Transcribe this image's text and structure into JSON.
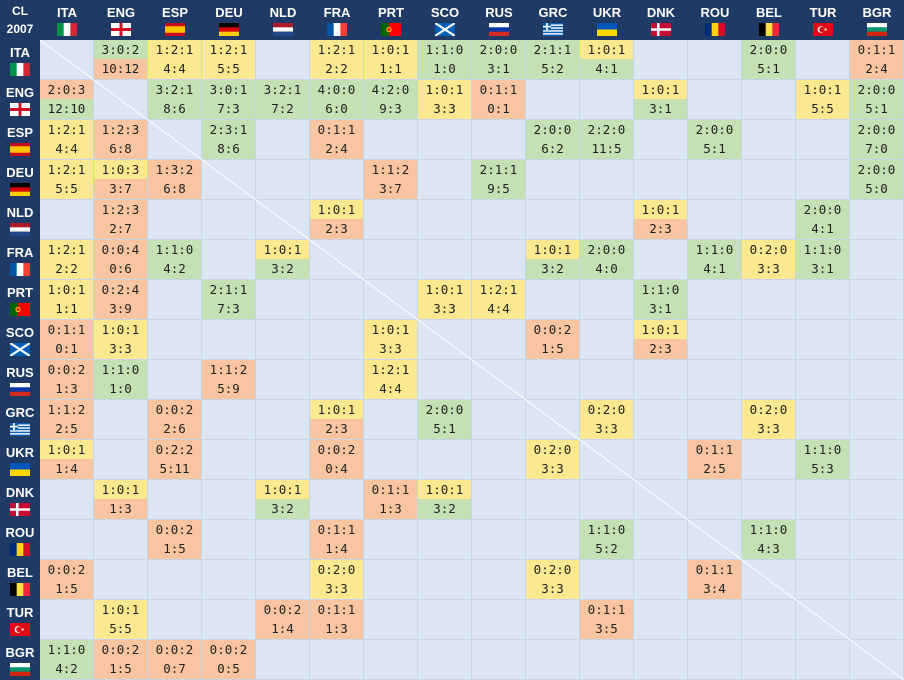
{
  "corner": {
    "line1": "CL",
    "line2": "2007"
  },
  "teams": [
    {
      "code": "ITA",
      "flag": "it-flag-icon"
    },
    {
      "code": "ENG",
      "flag": "eng-flag-icon"
    },
    {
      "code": "ESP",
      "flag": "es-flag-icon"
    },
    {
      "code": "DEU",
      "flag": "de-flag-icon"
    },
    {
      "code": "NLD",
      "flag": "nl-flag-icon"
    },
    {
      "code": "FRA",
      "flag": "fr-flag-icon"
    },
    {
      "code": "PRT",
      "flag": "pt-flag-icon"
    },
    {
      "code": "SCO",
      "flag": "sco-flag-icon"
    },
    {
      "code": "RUS",
      "flag": "ru-flag-icon"
    },
    {
      "code": "GRC",
      "flag": "gr-flag-icon"
    },
    {
      "code": "UKR",
      "flag": "ua-flag-icon"
    },
    {
      "code": "DNK",
      "flag": "dk-flag-icon"
    },
    {
      "code": "ROU",
      "flag": "ro-flag-icon"
    },
    {
      "code": "BEL",
      "flag": "be-flag-icon"
    },
    {
      "code": "TUR",
      "flag": "tr-flag-icon"
    },
    {
      "code": "BGR",
      "flag": "bg-flag-icon"
    }
  ],
  "colors": {
    "header_bg": "#1f3a64",
    "grid_bg": "#dce6f2",
    "green": "#c5e0b3",
    "yellow": "#fce98f",
    "orange": "#f8c5a0"
  },
  "chart_data": {
    "type": "table",
    "cells": [
      {
        "r": 0,
        "c": 1,
        "top": "3:0:2",
        "bot": "10:12",
        "style": "mixGO"
      },
      {
        "r": 0,
        "c": 2,
        "top": "1:2:1",
        "bot": "4:4",
        "style": "yellow"
      },
      {
        "r": 0,
        "c": 3,
        "top": "1:2:1",
        "bot": "5:5",
        "style": "yellow"
      },
      {
        "r": 0,
        "c": 5,
        "top": "1:2:1",
        "bot": "2:2",
        "style": "yellow"
      },
      {
        "r": 0,
        "c": 6,
        "top": "1:0:1",
        "bot": "1:1",
        "style": "yellow"
      },
      {
        "r": 0,
        "c": 7,
        "top": "1:1:0",
        "bot": "1:0",
        "style": "green"
      },
      {
        "r": 0,
        "c": 8,
        "top": "2:0:0",
        "bot": "3:1",
        "style": "green"
      },
      {
        "r": 0,
        "c": 9,
        "top": "2:1:1",
        "bot": "5:2",
        "style": "green"
      },
      {
        "r": 0,
        "c": 10,
        "top": "1:0:1",
        "bot": "4:1",
        "style": "mixYG"
      },
      {
        "r": 0,
        "c": 13,
        "top": "2:0:0",
        "bot": "5:1",
        "style": "green"
      },
      {
        "r": 0,
        "c": 15,
        "top": "0:1:1",
        "bot": "2:4",
        "style": "orange"
      },
      {
        "r": 1,
        "c": 0,
        "top": "2:0:3",
        "bot": "12:10",
        "style": "mixOG"
      },
      {
        "r": 1,
        "c": 2,
        "top": "3:2:1",
        "bot": "8:6",
        "style": "green"
      },
      {
        "r": 1,
        "c": 3,
        "top": "3:0:1",
        "bot": "7:3",
        "style": "green"
      },
      {
        "r": 1,
        "c": 4,
        "top": "3:2:1",
        "bot": "7:2",
        "style": "green"
      },
      {
        "r": 1,
        "c": 5,
        "top": "4:0:0",
        "bot": "6:0",
        "style": "green"
      },
      {
        "r": 1,
        "c": 6,
        "top": "4:2:0",
        "bot": "9:3",
        "style": "green"
      },
      {
        "r": 1,
        "c": 7,
        "top": "1:0:1",
        "bot": "3:3",
        "style": "yellow"
      },
      {
        "r": 1,
        "c": 8,
        "top": "0:1:1",
        "bot": "0:1",
        "style": "orange"
      },
      {
        "r": 1,
        "c": 11,
        "top": "1:0:1",
        "bot": "3:1",
        "style": "mixYG"
      },
      {
        "r": 1,
        "c": 14,
        "top": "1:0:1",
        "bot": "5:5",
        "style": "yellow"
      },
      {
        "r": 1,
        "c": 15,
        "top": "2:0:0",
        "bot": "5:1",
        "style": "green"
      },
      {
        "r": 2,
        "c": 0,
        "top": "1:2:1",
        "bot": "4:4",
        "style": "yellow"
      },
      {
        "r": 2,
        "c": 1,
        "top": "1:2:3",
        "bot": "6:8",
        "style": "orange"
      },
      {
        "r": 2,
        "c": 3,
        "top": "2:3:1",
        "bot": "8:6",
        "style": "green"
      },
      {
        "r": 2,
        "c": 5,
        "top": "0:1:1",
        "bot": "2:4",
        "style": "orange"
      },
      {
        "r": 2,
        "c": 9,
        "top": "2:0:0",
        "bot": "6:2",
        "style": "green"
      },
      {
        "r": 2,
        "c": 10,
        "top": "2:2:0",
        "bot": "11:5",
        "style": "green"
      },
      {
        "r": 2,
        "c": 12,
        "top": "2:0:0",
        "bot": "5:1",
        "style": "green"
      },
      {
        "r": 2,
        "c": 15,
        "top": "2:0:0",
        "bot": "7:0",
        "style": "green"
      },
      {
        "r": 3,
        "c": 0,
        "top": "1:2:1",
        "bot": "5:5",
        "style": "yellow"
      },
      {
        "r": 3,
        "c": 1,
        "top": "1:0:3",
        "bot": "3:7",
        "style": "mixYO"
      },
      {
        "r": 3,
        "c": 2,
        "top": "1:3:2",
        "bot": "6:8",
        "style": "orange"
      },
      {
        "r": 3,
        "c": 6,
        "top": "1:1:2",
        "bot": "3:7",
        "style": "orange"
      },
      {
        "r": 3,
        "c": 8,
        "top": "2:1:1",
        "bot": "9:5",
        "style": "green"
      },
      {
        "r": 3,
        "c": 15,
        "top": "2:0:0",
        "bot": "5:0",
        "style": "green"
      },
      {
        "r": 4,
        "c": 1,
        "top": "1:2:3",
        "bot": "2:7",
        "style": "orange"
      },
      {
        "r": 4,
        "c": 5,
        "top": "1:0:1",
        "bot": "2:3",
        "style": "mixYO"
      },
      {
        "r": 4,
        "c": 11,
        "top": "1:0:1",
        "bot": "2:3",
        "style": "mixYO"
      },
      {
        "r": 4,
        "c": 14,
        "top": "2:0:0",
        "bot": "4:1",
        "style": "green"
      },
      {
        "r": 5,
        "c": 0,
        "top": "1:2:1",
        "bot": "2:2",
        "style": "yellow"
      },
      {
        "r": 5,
        "c": 1,
        "top": "0:0:4",
        "bot": "0:6",
        "style": "orange"
      },
      {
        "r": 5,
        "c": 2,
        "top": "1:1:0",
        "bot": "4:2",
        "style": "green"
      },
      {
        "r": 5,
        "c": 4,
        "top": "1:0:1",
        "bot": "3:2",
        "style": "mixYG"
      },
      {
        "r": 5,
        "c": 9,
        "top": "1:0:1",
        "bot": "3:2",
        "style": "mixYG"
      },
      {
        "r": 5,
        "c": 10,
        "top": "2:0:0",
        "bot": "4:0",
        "style": "green"
      },
      {
        "r": 5,
        "c": 12,
        "top": "1:1:0",
        "bot": "4:1",
        "style": "green"
      },
      {
        "r": 5,
        "c": 13,
        "top": "0:2:0",
        "bot": "3:3",
        "style": "yellow"
      },
      {
        "r": 5,
        "c": 14,
        "top": "1:1:0",
        "bot": "3:1",
        "style": "green"
      },
      {
        "r": 6,
        "c": 0,
        "top": "1:0:1",
        "bot": "1:1",
        "style": "yellow"
      },
      {
        "r": 6,
        "c": 1,
        "top": "0:2:4",
        "bot": "3:9",
        "style": "orange"
      },
      {
        "r": 6,
        "c": 3,
        "top": "2:1:1",
        "bot": "7:3",
        "style": "green"
      },
      {
        "r": 6,
        "c": 7,
        "top": "1:0:1",
        "bot": "3:3",
        "style": "yellow"
      },
      {
        "r": 6,
        "c": 8,
        "top": "1:2:1",
        "bot": "4:4",
        "style": "yellow"
      },
      {
        "r": 6,
        "c": 11,
        "top": "1:1:0",
        "bot": "3:1",
        "style": "green"
      },
      {
        "r": 7,
        "c": 0,
        "top": "0:1:1",
        "bot": "0:1",
        "style": "orange"
      },
      {
        "r": 7,
        "c": 1,
        "top": "1:0:1",
        "bot": "3:3",
        "style": "yellow"
      },
      {
        "r": 7,
        "c": 6,
        "top": "1:0:1",
        "bot": "3:3",
        "style": "yellow"
      },
      {
        "r": 7,
        "c": 9,
        "top": "0:0:2",
        "bot": "1:5",
        "style": "orange"
      },
      {
        "r": 7,
        "c": 11,
        "top": "1:0:1",
        "bot": "2:3",
        "style": "mixYO"
      },
      {
        "r": 8,
        "c": 0,
        "top": "0:0:2",
        "bot": "1:3",
        "style": "orange"
      },
      {
        "r": 8,
        "c": 1,
        "top": "1:1:0",
        "bot": "1:0",
        "style": "green"
      },
      {
        "r": 8,
        "c": 3,
        "top": "1:1:2",
        "bot": "5:9",
        "style": "orange"
      },
      {
        "r": 8,
        "c": 6,
        "top": "1:2:1",
        "bot": "4:4",
        "style": "yellow"
      },
      {
        "r": 9,
        "c": 0,
        "top": "1:1:2",
        "bot": "2:5",
        "style": "orange"
      },
      {
        "r": 9,
        "c": 2,
        "top": "0:0:2",
        "bot": "2:6",
        "style": "orange"
      },
      {
        "r": 9,
        "c": 5,
        "top": "1:0:1",
        "bot": "2:3",
        "style": "mixYO"
      },
      {
        "r": 9,
        "c": 7,
        "top": "2:0:0",
        "bot": "5:1",
        "style": "green"
      },
      {
        "r": 9,
        "c": 10,
        "top": "0:2:0",
        "bot": "3:3",
        "style": "yellow"
      },
      {
        "r": 9,
        "c": 13,
        "top": "0:2:0",
        "bot": "3:3",
        "style": "yellow"
      },
      {
        "r": 10,
        "c": 0,
        "top": "1:0:1",
        "bot": "1:4",
        "style": "mixYO"
      },
      {
        "r": 10,
        "c": 2,
        "top": "0:2:2",
        "bot": "5:11",
        "style": "orange"
      },
      {
        "r": 10,
        "c": 5,
        "top": "0:0:2",
        "bot": "0:4",
        "style": "orange"
      },
      {
        "r": 10,
        "c": 9,
        "top": "0:2:0",
        "bot": "3:3",
        "style": "yellow"
      },
      {
        "r": 10,
        "c": 12,
        "top": "0:1:1",
        "bot": "2:5",
        "style": "orange"
      },
      {
        "r": 10,
        "c": 14,
        "top": "1:1:0",
        "bot": "5:3",
        "style": "green"
      },
      {
        "r": 11,
        "c": 1,
        "top": "1:0:1",
        "bot": "1:3",
        "style": "mixYO"
      },
      {
        "r": 11,
        "c": 4,
        "top": "1:0:1",
        "bot": "3:2",
        "style": "mixYG"
      },
      {
        "r": 11,
        "c": 6,
        "top": "0:1:1",
        "bot": "1:3",
        "style": "orange"
      },
      {
        "r": 11,
        "c": 7,
        "top": "1:0:1",
        "bot": "3:2",
        "style": "mixYG"
      },
      {
        "r": 12,
        "c": 2,
        "top": "0:0:2",
        "bot": "1:5",
        "style": "orange"
      },
      {
        "r": 12,
        "c": 5,
        "top": "0:1:1",
        "bot": "1:4",
        "style": "orange"
      },
      {
        "r": 12,
        "c": 10,
        "top": "1:1:0",
        "bot": "5:2",
        "style": "green"
      },
      {
        "r": 12,
        "c": 13,
        "top": "1:1:0",
        "bot": "4:3",
        "style": "green"
      },
      {
        "r": 13,
        "c": 0,
        "top": "0:0:2",
        "bot": "1:5",
        "style": "orange"
      },
      {
        "r": 13,
        "c": 5,
        "top": "0:2:0",
        "bot": "3:3",
        "style": "yellow"
      },
      {
        "r": 13,
        "c": 9,
        "top": "0:2:0",
        "bot": "3:3",
        "style": "yellow"
      },
      {
        "r": 13,
        "c": 12,
        "top": "0:1:1",
        "bot": "3:4",
        "style": "orange"
      },
      {
        "r": 14,
        "c": 1,
        "top": "1:0:1",
        "bot": "5:5",
        "style": "yellow"
      },
      {
        "r": 14,
        "c": 4,
        "top": "0:0:2",
        "bot": "1:4",
        "style": "orange"
      },
      {
        "r": 14,
        "c": 5,
        "top": "0:1:1",
        "bot": "1:3",
        "style": "orange"
      },
      {
        "r": 14,
        "c": 10,
        "top": "0:1:1",
        "bot": "3:5",
        "style": "orange"
      },
      {
        "r": 15,
        "c": 0,
        "top": "1:1:0",
        "bot": "4:2",
        "style": "green"
      },
      {
        "r": 15,
        "c": 1,
        "top": "0:0:2",
        "bot": "1:5",
        "style": "orange"
      },
      {
        "r": 15,
        "c": 2,
        "top": "0:0:2",
        "bot": "0:7",
        "style": "orange"
      },
      {
        "r": 15,
        "c": 3,
        "top": "0:0:2",
        "bot": "0:5",
        "style": "orange"
      }
    ]
  }
}
